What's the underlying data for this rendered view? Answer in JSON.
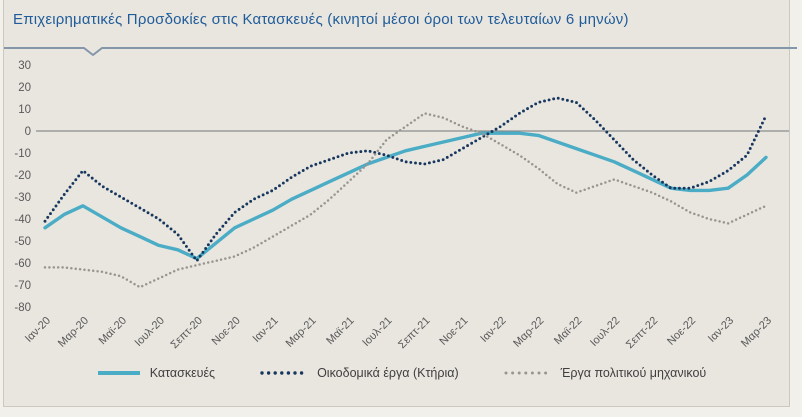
{
  "colors": {
    "page_background": "#f2f0ea",
    "panel_background": "#e9e6e0",
    "title_text": "#1f5c99",
    "header_rule": "#8496a9",
    "zero_line": "#8c8c8c",
    "axis_text": "#595959",
    "legend_text": "#3f3f3f"
  },
  "chart_data": {
    "type": "line",
    "title": "Επιχειρηματικές Προσδοκίες στις Κατασκευές (κινητοί μέσοι όροι των τελευταίων 6 μηνών)",
    "xlabel": "",
    "ylabel": "",
    "ylim": [
      -80,
      30
    ],
    "y_ticks": [
      30,
      20,
      10,
      0,
      -10,
      -20,
      -30,
      -40,
      -50,
      -60,
      -70,
      -80
    ],
    "grid": "horizontal zero line only",
    "legend_position": "bottom",
    "points_per_tick": 2,
    "n_points": 39,
    "x_tick_labels": [
      "Ιαν-20",
      "Μαρ-20",
      "Μαϊ-20",
      "Ιουλ-20",
      "Σεπτ-20",
      "Νοε-20",
      "Ιαν-21",
      "Μαρ-21",
      "Μαϊ-21",
      "Ιουλ-21",
      "Σεπτ-21",
      "Νοε-21",
      "Ιαν-22",
      "Μαρ-22",
      "Μαϊ-22",
      "Ιουλ-22",
      "Σεπτ-22",
      "Νοε-22",
      "Ιαν-23",
      "Μαρ-23"
    ],
    "series": [
      {
        "name": "Κατασκευές",
        "line_style": "solid",
        "color": "#4bacc6",
        "values": [
          -44,
          -38,
          -34,
          -39,
          -44,
          -48,
          -52,
          -54,
          -58,
          -51,
          -44,
          -40,
          -36,
          -31,
          -27,
          -23,
          -19,
          -15,
          -12,
          -9,
          -7,
          -5,
          -3,
          -1,
          -1,
          -1,
          -2,
          -5,
          -8,
          -11,
          -14,
          -18,
          -22,
          -26,
          -27,
          -27,
          -26,
          -20,
          -12
        ]
      },
      {
        "name": "Οικοδομικά έργα (Κτήρια)",
        "line_style": "dotted",
        "color": "#17375e",
        "values": [
          -41,
          -29,
          -18,
          -25,
          -30,
          -35,
          -40,
          -47,
          -59,
          -47,
          -37,
          -31,
          -27,
          -21,
          -16,
          -13,
          -10,
          -9,
          -11,
          -14,
          -15,
          -13,
          -8,
          -3,
          2,
          8,
          13,
          15,
          13,
          5,
          -4,
          -13,
          -20,
          -26,
          -26,
          -23,
          -18,
          -11,
          7
        ]
      },
      {
        "name": "Έργα πολιτικού μηχανικού",
        "line_style": "dotted",
        "color": "#98958f",
        "values": [
          -62,
          -62,
          -63,
          -64,
          -66,
          -71,
          -67,
          -63,
          -61,
          -59,
          -57,
          -53,
          -48,
          -43,
          -38,
          -31,
          -23,
          -15,
          -4,
          2,
          8,
          6,
          2,
          -1,
          -6,
          -11,
          -17,
          -24,
          -28,
          -25,
          -22,
          -25,
          -28,
          -32,
          -37,
          -40,
          -42,
          -38,
          -34
        ]
      }
    ]
  }
}
